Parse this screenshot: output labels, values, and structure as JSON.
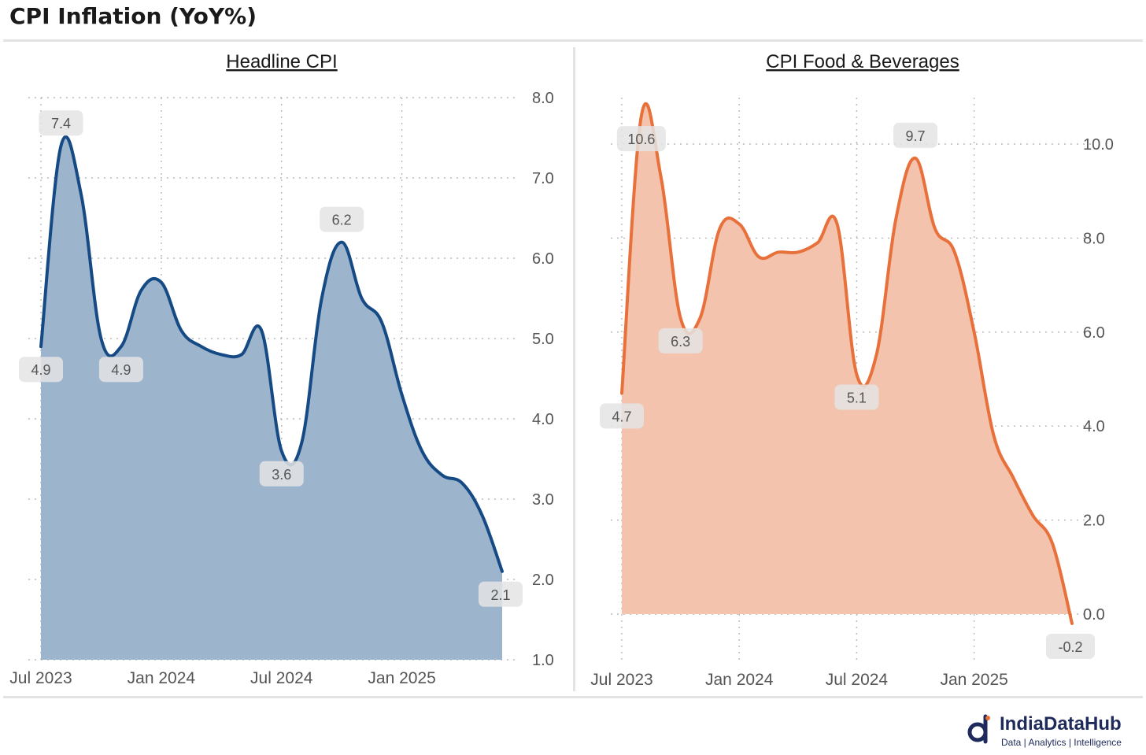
{
  "title": "CPI Inflation (YoY%)",
  "brand": {
    "name": "IndiaDataHub",
    "tagline": "Data | Analytics | Intelligence",
    "color": "#1f2a5c"
  },
  "chart_data": [
    {
      "type": "area",
      "title": "Headline CPI",
      "color": "#154a85",
      "fill": "#9db4cd",
      "x": [
        "2023-07",
        "2023-08",
        "2023-09",
        "2023-10",
        "2023-11",
        "2023-12",
        "2024-01",
        "2024-02",
        "2024-03",
        "2024-04",
        "2024-05",
        "2024-06",
        "2024-07",
        "2024-08",
        "2024-09",
        "2024-10",
        "2024-11",
        "2024-12",
        "2025-01",
        "2025-02",
        "2025-03",
        "2025-04",
        "2025-05",
        "2025-06"
      ],
      "values": [
        4.9,
        7.4,
        6.8,
        5.0,
        4.9,
        5.6,
        5.7,
        5.1,
        4.9,
        4.8,
        4.8,
        5.1,
        3.6,
        3.7,
        5.5,
        6.2,
        5.5,
        5.2,
        4.3,
        3.6,
        3.3,
        3.2,
        2.8,
        2.1
      ],
      "ylim": [
        1.0,
        8.0
      ],
      "yticks": [
        "1.0",
        "2.0",
        "3.0",
        "4.0",
        "5.0",
        "6.0",
        "7.0",
        "8.0"
      ],
      "xticks": [
        {
          "i": 0,
          "label": "Jul 2023"
        },
        {
          "i": 6,
          "label": "Jan 2024"
        },
        {
          "i": 12,
          "label": "Jul 2024"
        },
        {
          "i": 18,
          "label": "Jan 2025"
        }
      ],
      "labels": [
        {
          "i": 0,
          "text": "4.9",
          "pos": "below"
        },
        {
          "i": 1,
          "text": "7.4",
          "pos": "above"
        },
        {
          "i": 4,
          "text": "4.9",
          "pos": "below"
        },
        {
          "i": 12,
          "text": "3.6",
          "pos": "below"
        },
        {
          "i": 15,
          "text": "6.2",
          "pos": "above"
        },
        {
          "i": 23,
          "text": "2.1",
          "pos": "below"
        }
      ]
    },
    {
      "type": "area",
      "title": "CPI Food & Beverages",
      "color": "#e8703a",
      "fill": "#f3c3ad",
      "x": [
        "2023-07",
        "2023-08",
        "2023-09",
        "2023-10",
        "2023-11",
        "2023-12",
        "2024-01",
        "2024-02",
        "2024-03",
        "2024-04",
        "2024-05",
        "2024-06",
        "2024-07",
        "2024-08",
        "2024-09",
        "2024-10",
        "2024-11",
        "2024-12",
        "2025-01",
        "2025-02",
        "2025-03",
        "2025-04",
        "2025-05",
        "2025-06"
      ],
      "values": [
        4.7,
        10.6,
        9.3,
        6.3,
        6.3,
        8.2,
        8.3,
        7.6,
        7.7,
        7.7,
        7.9,
        8.3,
        5.1,
        5.5,
        8.4,
        9.7,
        8.2,
        7.7,
        6.0,
        3.8,
        2.9,
        2.1,
        1.5,
        -0.2
      ],
      "ylim": [
        -0.6,
        11.0
      ],
      "yticks": [
        "0.0",
        "2.0",
        "4.0",
        "6.0",
        "8.0",
        "10.0"
      ],
      "ytickValues": [
        0,
        2,
        4,
        6,
        8,
        10
      ],
      "xticks": [
        {
          "i": 0,
          "label": "Jul 2023"
        },
        {
          "i": 6,
          "label": "Jan 2024"
        },
        {
          "i": 12,
          "label": "Jul 2024"
        },
        {
          "i": 18,
          "label": "Jan 2025"
        }
      ],
      "labels": [
        {
          "i": 0,
          "text": "4.7",
          "pos": "below"
        },
        {
          "i": 1,
          "text": "10.6",
          "pos": "on"
        },
        {
          "i": 3,
          "text": "6.3",
          "pos": "below"
        },
        {
          "i": 12,
          "text": "5.1",
          "pos": "below"
        },
        {
          "i": 15,
          "text": "9.7",
          "pos": "above"
        },
        {
          "i": 23,
          "text": "-0.2",
          "pos": "below"
        }
      ]
    }
  ]
}
